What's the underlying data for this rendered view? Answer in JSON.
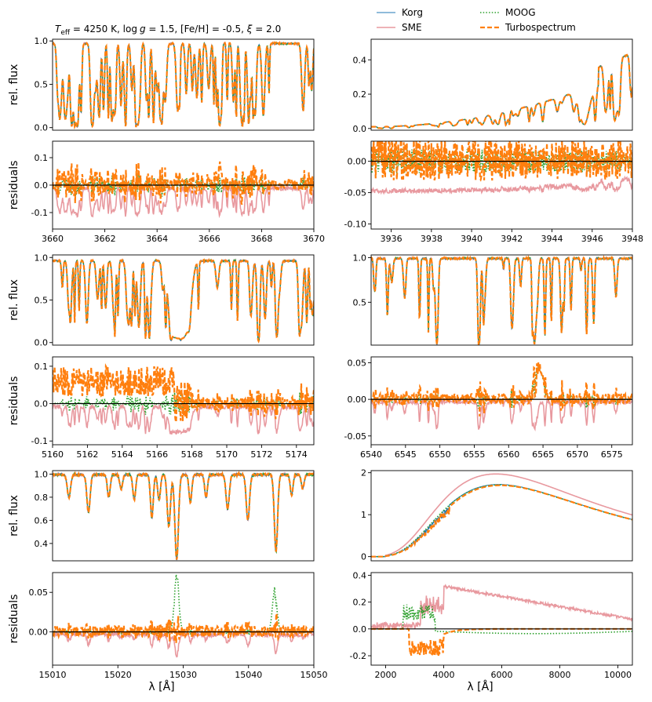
{
  "colors": {
    "Korg": "#1f77b4",
    "SME": "#e8999f",
    "MOOG": "#2ca02c",
    "Turbospectrum": "#ff7f0e"
  },
  "title_text": "T_eff = 4250 K, log g = 1.5, [Fe/H] = -0.5, ξ = 2.0",
  "title_parts": {
    "t": "T",
    "eff": "eff",
    "rest1": " = 4250 K, ",
    "log": "log",
    "g": "g",
    "rest2": " = 1.5, [Fe/H] = -0.5, ",
    "xi": "ξ",
    "rest3": " = 2.0"
  },
  "xlabel": "λ [Å]",
  "chart_data": [
    {
      "type": "line",
      "role": "flux",
      "ylabel": "rel. flux",
      "xlim": [
        3660,
        3670
      ],
      "ylim": [
        -0.03,
        1.02
      ],
      "xticks": [],
      "yticks": [
        "0.0",
        "0.5",
        "1.0"
      ],
      "series": [
        "Korg",
        "SME",
        "MOOG",
        "Turbospectrum"
      ]
    },
    {
      "type": "line",
      "role": "flux",
      "ylabel": "",
      "xlim": [
        3935,
        3948
      ],
      "ylim": [
        -0.01,
        0.52
      ],
      "xticks": [],
      "yticks": [
        "0.0",
        "0.2",
        "0.4"
      ],
      "series": [
        "Korg",
        "SME",
        "MOOG",
        "Turbospectrum"
      ]
    },
    {
      "type": "line",
      "role": "residuals",
      "ylabel": "residuals",
      "xlim": [
        3660,
        3670
      ],
      "ylim": [
        -0.16,
        0.16
      ],
      "xticks": [
        "3660",
        "3662",
        "3664",
        "3666",
        "3668",
        "3670"
      ],
      "yticks": [
        "-0.1",
        "0.0",
        "0.1"
      ],
      "series": [
        "SME",
        "MOOG",
        "Turbospectrum"
      ]
    },
    {
      "type": "line",
      "role": "residuals",
      "ylabel": "",
      "xlim": [
        3935,
        3948
      ],
      "ylim": [
        -0.108,
        0.032
      ],
      "xticks": [
        "3936",
        "3938",
        "3940",
        "3942",
        "3944",
        "3946",
        "3948"
      ],
      "yticks": [
        "-0.10",
        "-0.05",
        "0.00"
      ],
      "series": [
        "SME",
        "MOOG",
        "Turbospectrum"
      ]
    },
    {
      "type": "line",
      "role": "flux",
      "ylabel": "rel. flux",
      "xlim": [
        5160,
        5175
      ],
      "ylim": [
        -0.03,
        1.03
      ],
      "xticks": [],
      "yticks": [
        "0.0",
        "0.5",
        "1.0"
      ],
      "series": [
        "Korg",
        "SME",
        "MOOG",
        "Turbospectrum"
      ]
    },
    {
      "type": "line",
      "role": "flux",
      "ylabel": "",
      "xlim": [
        6540,
        6578
      ],
      "ylim": [
        0.02,
        1.03
      ],
      "xticks": [],
      "yticks": [
        "0.5",
        "1.0"
      ],
      "series": [
        "Korg",
        "SME",
        "MOOG",
        "Turbospectrum"
      ]
    },
    {
      "type": "line",
      "role": "residuals",
      "ylabel": "residuals",
      "xlim": [
        5160,
        5175
      ],
      "ylim": [
        -0.11,
        0.125
      ],
      "xticks": [
        "5160",
        "5162",
        "5164",
        "5166",
        "5168",
        "5170",
        "5172",
        "5174"
      ],
      "yticks": [
        "-0.1",
        "0.0",
        "0.1"
      ],
      "series": [
        "SME",
        "MOOG",
        "Turbospectrum"
      ]
    },
    {
      "type": "line",
      "role": "residuals",
      "ylabel": "",
      "xlim": [
        6540,
        6578
      ],
      "ylim": [
        -0.062,
        0.058
      ],
      "xticks": [
        "6540",
        "6545",
        "6550",
        "6555",
        "6560",
        "6565",
        "6570",
        "6575"
      ],
      "yticks": [
        "-0.05",
        "0.00",
        "0.05"
      ],
      "series": [
        "SME",
        "MOOG",
        "Turbospectrum"
      ]
    },
    {
      "type": "line",
      "role": "flux",
      "ylabel": "rel. flux",
      "xlim": [
        15010,
        15050
      ],
      "ylim": [
        0.25,
        1.03
      ],
      "xticks": [],
      "yticks": [
        "0.4",
        "0.6",
        "0.8",
        "1.0"
      ],
      "series": [
        "Korg",
        "SME",
        "MOOG",
        "Turbospectrum"
      ]
    },
    {
      "type": "line",
      "role": "flux",
      "ylabel": "",
      "xlim": [
        1500,
        10500
      ],
      "ylim": [
        -0.1,
        2.05
      ],
      "xticks": [],
      "yticks": [
        "0",
        "1",
        "2"
      ],
      "series": [
        "Korg",
        "SME",
        "MOOG",
        "Turbospectrum"
      ],
      "peaks": {
        "SME": 1.97,
        "Korg": 1.72,
        "MOOG": 1.71,
        "Turbospectrum": 1.7
      }
    },
    {
      "type": "line",
      "role": "residuals",
      "ylabel": "residuals",
      "xlim": [
        15010,
        15050
      ],
      "ylim": [
        -0.042,
        0.075
      ],
      "xticks": [
        "15010",
        "15020",
        "15030",
        "15040",
        "15050"
      ],
      "yticks": [
        "0.00",
        "0.05"
      ],
      "series": [
        "SME",
        "MOOG",
        "Turbospectrum"
      ]
    },
    {
      "type": "line",
      "role": "residuals",
      "ylabel": "",
      "xlim": [
        1500,
        10500
      ],
      "ylim": [
        -0.27,
        0.42
      ],
      "xticks": [
        "2000",
        "4000",
        "6000",
        "8000",
        "10000"
      ],
      "yticks": [
        "-0.2",
        "0.0",
        "0.2",
        "0.4"
      ],
      "series": [
        "SME",
        "MOOG",
        "Turbospectrum"
      ]
    }
  ],
  "legend": [
    {
      "name": "Korg",
      "style": "solid"
    },
    {
      "name": "MOOG",
      "style": "dotted"
    },
    {
      "name": "SME",
      "style": "solid"
    },
    {
      "name": "Turbospectrum",
      "style": "dashed"
    }
  ]
}
